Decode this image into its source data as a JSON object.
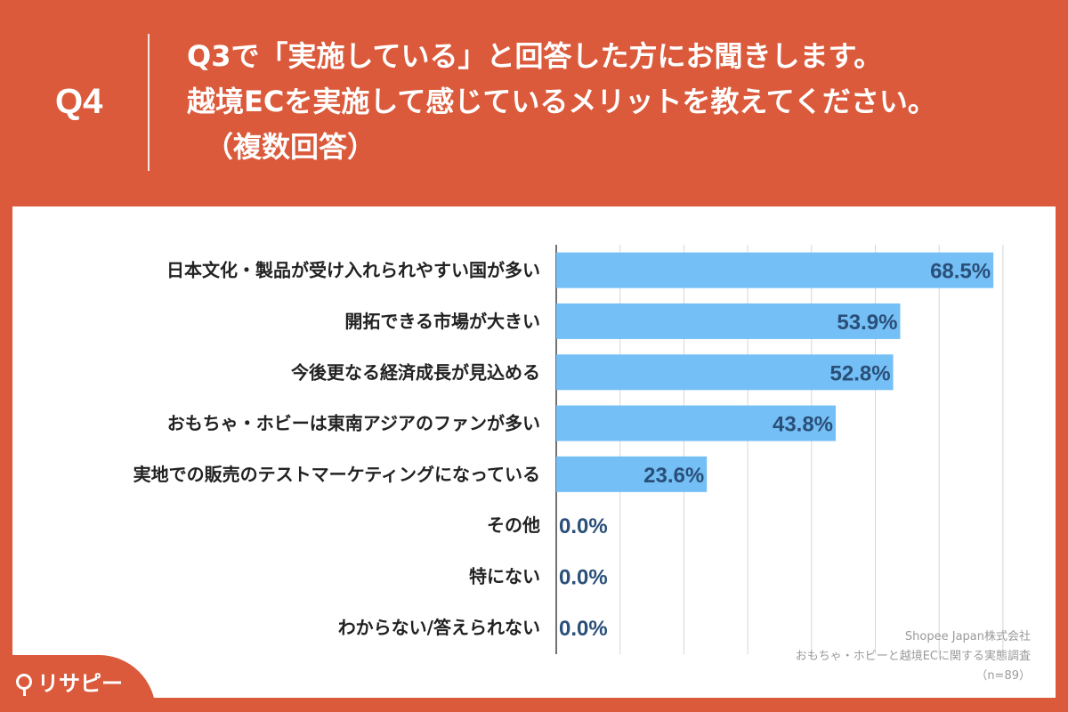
{
  "header": {
    "question_id": "Q4",
    "lines": [
      "Q3で「実施している」と回答した方にお聞きします。",
      "越境ECを実施して感じているメリットを教えてください。",
      "（複数回答）"
    ]
  },
  "source": {
    "company": "Shopee Japan株式会社",
    "survey": "おもちゃ・ホビーと越境ECに関する実態調査",
    "sample": "（n=89）"
  },
  "logo": {
    "text": "リサピー",
    "icon": "search-icon"
  },
  "colors": {
    "background": "#db5a3b",
    "bar": "#74bff5",
    "value_label": "#2a4f79",
    "category_label": "#222222"
  },
  "chart_data": {
    "type": "bar",
    "orientation": "horizontal",
    "categories": [
      "日本文化・製品が受け入れられやすい国が多い",
      "開拓できる市場が大きい",
      "今後更なる経済成長が見込める",
      "おもちゃ・ホビーは東南アジアのファンが多い",
      "実地での販売のテストマーケティングになっている",
      "その他",
      "特にない",
      "わからない/答えられない"
    ],
    "values": [
      68.5,
      53.9,
      52.8,
      43.8,
      23.6,
      0.0,
      0.0,
      0.0
    ],
    "value_labels": [
      "68.5%",
      "53.9%",
      "52.8%",
      "43.8%",
      "23.6%",
      "0.0%",
      "0.0%",
      "0.0%"
    ],
    "xlim": [
      0,
      70
    ],
    "grid": true
  }
}
